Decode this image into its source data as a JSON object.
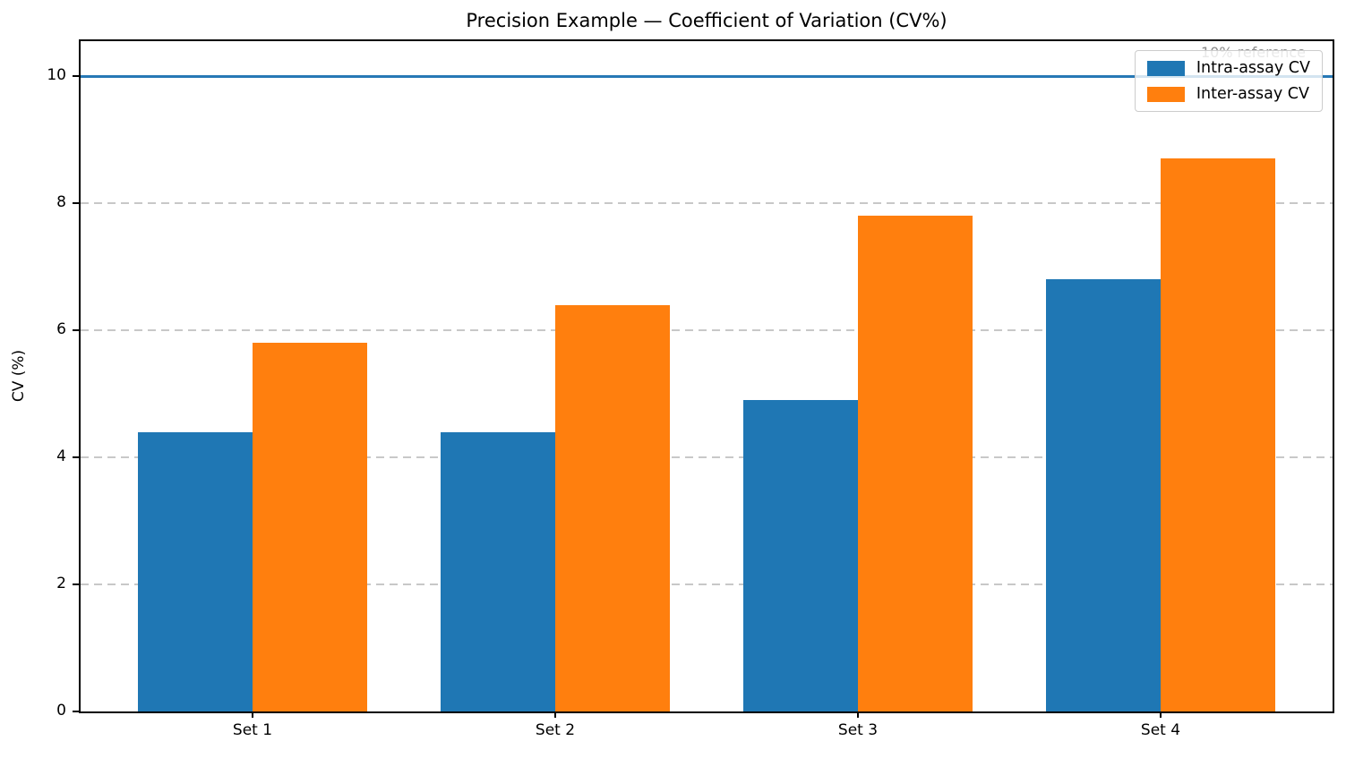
{
  "chart_data": {
    "type": "bar",
    "title": "Precision Example — Coefficient of Variation (CV%)",
    "xlabel": "",
    "ylabel": "CV (%)",
    "categories": [
      "Set 1",
      "Set 2",
      "Set 3",
      "Set 4"
    ],
    "series": [
      {
        "name": "Intra-assay CV",
        "color": "#1f77b4",
        "values": [
          4.4,
          4.4,
          4.9,
          6.8
        ]
      },
      {
        "name": "Inter-assay CV",
        "color": "#ff7f0e",
        "values": [
          5.8,
          6.4,
          7.8,
          8.7
        ]
      }
    ],
    "yticks": [
      0,
      2,
      4,
      6,
      8,
      10
    ],
    "ylim": [
      0,
      10.55
    ],
    "xlim": [
      -0.568,
      3.568
    ],
    "bar_width": 0.38,
    "grid": {
      "axis": "y",
      "style": "dashed",
      "color": "#c8c8c8"
    },
    "reference_line": {
      "value": 10,
      "label": "10% reference",
      "color": "#2778b5",
      "label_color": "#8a8a8a"
    },
    "legend": {
      "position": "upper right",
      "entries": [
        "Intra-assay CV",
        "Inter-assay CV"
      ]
    }
  }
}
